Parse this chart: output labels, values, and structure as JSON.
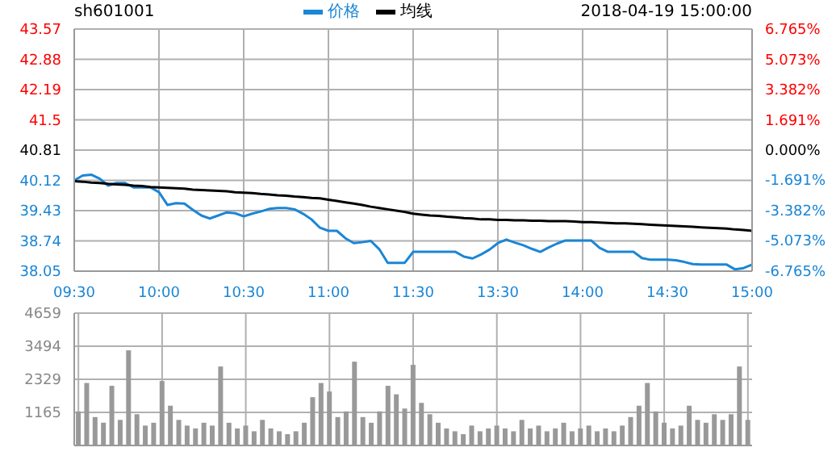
{
  "chart_data": [
    {
      "type": "line",
      "title": "sh601001",
      "annotations": [
        "2018-04-19 15:00:00"
      ],
      "legend": "top",
      "grid": true,
      "categories": [
        "09:30",
        null,
        null,
        null,
        null,
        null,
        null,
        null,
        null,
        null,
        "10:00",
        null,
        null,
        null,
        null,
        null,
        null,
        null,
        null,
        null,
        "10:30",
        null,
        null,
        null,
        null,
        null,
        null,
        null,
        null,
        null,
        "11:00",
        null,
        null,
        null,
        null,
        null,
        null,
        null,
        null,
        null,
        "11:30",
        null,
        null,
        null,
        null,
        null,
        null,
        null,
        null,
        null,
        "13:30",
        null,
        null,
        null,
        null,
        null,
        null,
        null,
        null,
        null,
        "14:00",
        null,
        null,
        null,
        null,
        null,
        null,
        null,
        null,
        null,
        "14:30",
        null,
        null,
        null,
        null,
        null,
        null,
        null,
        null,
        null,
        "15:00"
      ],
      "ylim": [
        38.05,
        43.57
      ],
      "yticks": [
        38.05,
        38.74,
        39.43,
        40.12,
        40.81,
        41.5,
        42.19,
        42.88,
        43.57
      ],
      "y2lim": [
        -6.765,
        6.765
      ],
      "y2ticks": [
        {
          "value": -6.765,
          "label": "-6.765%"
        },
        {
          "value": -5.073,
          "label": "-5.073%"
        },
        {
          "value": -3.382,
          "label": "-3.382%"
        },
        {
          "value": -1.691,
          "label": "-1.691%"
        },
        {
          "value": 0,
          "label": "0.000%"
        },
        {
          "value": 1.691,
          "label": "1.691%"
        },
        {
          "value": 3.382,
          "label": "3.382%"
        },
        {
          "value": 5.073,
          "label": "5.073%"
        },
        {
          "value": 6.765,
          "label": "6.765%"
        }
      ],
      "series": [
        {
          "name": "价格",
          "color": "#1a86d6",
          "values": [
            40.12,
            40.23,
            40.25,
            40.16,
            40.0,
            40.06,
            40.06,
            39.96,
            39.96,
            39.96,
            39.85,
            39.56,
            39.6,
            39.59,
            39.45,
            39.32,
            39.25,
            39.32,
            39.39,
            39.37,
            39.3,
            39.36,
            39.41,
            39.47,
            39.49,
            39.49,
            39.46,
            39.36,
            39.23,
            39.04,
            38.97,
            38.97,
            38.8,
            38.69,
            38.71,
            38.74,
            38.55,
            38.24,
            38.24,
            38.24,
            38.49,
            38.49,
            38.49,
            38.49,
            38.49,
            38.49,
            38.38,
            38.34,
            38.43,
            38.54,
            38.69,
            38.77,
            38.7,
            38.64,
            38.56,
            38.49,
            38.59,
            38.68,
            38.75,
            38.75,
            38.75,
            38.75,
            38.58,
            38.49,
            38.49,
            38.49,
            38.49,
            38.35,
            38.31,
            38.31,
            38.31,
            38.3,
            38.26,
            38.21,
            38.2,
            38.2,
            38.2,
            38.2,
            38.09,
            38.12,
            38.2
          ]
        },
        {
          "name": "均线",
          "color": "#000000",
          "values": [
            40.1,
            40.09,
            40.07,
            40.06,
            40.04,
            40.03,
            40.02,
            40.0,
            39.99,
            39.97,
            39.96,
            39.95,
            39.94,
            39.93,
            39.91,
            39.9,
            39.89,
            39.88,
            39.87,
            39.85,
            39.84,
            39.83,
            39.81,
            39.8,
            39.78,
            39.77,
            39.75,
            39.74,
            39.72,
            39.71,
            39.68,
            39.65,
            39.62,
            39.59,
            39.56,
            39.52,
            39.49,
            39.46,
            39.43,
            39.4,
            39.36,
            39.34,
            39.32,
            39.31,
            39.29,
            39.28,
            39.26,
            39.25,
            39.23,
            39.23,
            39.22,
            39.22,
            39.21,
            39.21,
            39.2,
            39.2,
            39.19,
            39.19,
            39.19,
            39.18,
            39.17,
            39.17,
            39.16,
            39.15,
            39.14,
            39.14,
            39.13,
            39.12,
            39.11,
            39.1,
            39.09,
            39.08,
            39.07,
            39.06,
            39.05,
            39.04,
            39.03,
            39.02,
            39.0,
            38.99,
            38.97
          ]
        }
      ]
    },
    {
      "type": "bar",
      "grid": true,
      "tick_labels": "y",
      "ylim": [
        0,
        4659
      ],
      "yticks": [
        1165,
        2329,
        3494,
        4659
      ],
      "color": "#999999",
      "categories": [
        null,
        null,
        null,
        null,
        null,
        null,
        null,
        null,
        null,
        null,
        null,
        null,
        null,
        null,
        null,
        null,
        null,
        null,
        null,
        null,
        null,
        null,
        null,
        null,
        null,
        null,
        null,
        null,
        null,
        null,
        null,
        null,
        null,
        null,
        null,
        null,
        null,
        null,
        null,
        null,
        null,
        null,
        null,
        null,
        null,
        null,
        null,
        null,
        null,
        null,
        null,
        null,
        null,
        null,
        null,
        null,
        null,
        null,
        null,
        null,
        null,
        null,
        null,
        null,
        null,
        null,
        null,
        null,
        null,
        null,
        null,
        null,
        null,
        null,
        null,
        null,
        null,
        null,
        null,
        null,
        null
      ],
      "values": [
        1200,
        2200,
        1000,
        800,
        2100,
        900,
        3350,
        1100,
        700,
        800,
        2270,
        1400,
        900,
        700,
        600,
        800,
        700,
        2780,
        800,
        600,
        700,
        500,
        900,
        600,
        500,
        400,
        500,
        800,
        1700,
        2200,
        1900,
        1000,
        1200,
        2950,
        1000,
        800,
        1200,
        2100,
        1800,
        1300,
        2840,
        1500,
        1100,
        800,
        600,
        500,
        400,
        700,
        500,
        600,
        700,
        600,
        500,
        900,
        600,
        700,
        500,
        600,
        800,
        500,
        600,
        700,
        500,
        600,
        500,
        700,
        1000,
        1400,
        2200,
        1200,
        800,
        600,
        700,
        1400,
        900,
        800,
        1100,
        900,
        1100,
        2780,
        900
      ]
    }
  ]
}
